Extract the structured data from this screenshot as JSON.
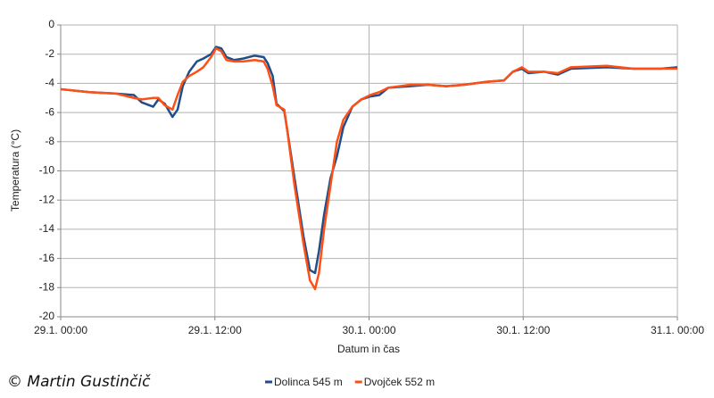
{
  "chart_data": {
    "type": "line",
    "x_label": "Datum in čas",
    "y_label": "Temperatura (°C)",
    "credit": "© Martin Gustinčič",
    "x": [
      0,
      2.2,
      4.3,
      5.7,
      6.3,
      7.2,
      7.6,
      8.1,
      8.7,
      9.1,
      9.5,
      10.0,
      10.6,
      11.1,
      11.7,
      12.1,
      12.5,
      12.9,
      13.5,
      14.2,
      15.1,
      15.8,
      16.1,
      16.5,
      16.8,
      17.4,
      17.6,
      18.2,
      18.9,
      19.4,
      19.8,
      20.1,
      20.5,
      21.0,
      21.5,
      22.0,
      22.7,
      23.4,
      24.1,
      24.8,
      25.5,
      27.2,
      28.6,
      30.0,
      31.4,
      33.1,
      34.5,
      35.2,
      35.9,
      36.4,
      37.6,
      38.7,
      39.7,
      42.5,
      44.6,
      46.7,
      48
    ],
    "series": [
      {
        "name": "Dolinca 545 m",
        "color": "#1f4e89",
        "values": [
          -4.4,
          -4.6,
          -4.7,
          -4.8,
          -5.3,
          -5.6,
          -5.1,
          -5.4,
          -6.3,
          -5.8,
          -4.2,
          -3.2,
          -2.5,
          -2.3,
          -2.0,
          -1.5,
          -1.6,
          -2.2,
          -2.4,
          -2.3,
          -2.1,
          -2.2,
          -2.6,
          -3.5,
          -5.4,
          -5.9,
          -7.0,
          -10.5,
          -14.5,
          -16.8,
          -17.0,
          -15.5,
          -13.0,
          -10.5,
          -9.0,
          -7.0,
          -5.6,
          -5.1,
          -4.9,
          -4.8,
          -4.3,
          -4.2,
          -4.1,
          -4.2,
          -4.1,
          -3.9,
          -3.8,
          -3.2,
          -3.0,
          -3.3,
          -3.2,
          -3.4,
          -3.0,
          -2.9,
          -3.0,
          -3.0,
          -2.9
        ]
      },
      {
        "name": "Dvojček 552 m",
        "color": "#ff4f14",
        "values": [
          -4.4,
          -4.6,
          -4.7,
          -5.0,
          -5.1,
          -5.0,
          -5.0,
          -5.5,
          -5.8,
          -4.8,
          -3.9,
          -3.5,
          -3.2,
          -2.9,
          -2.2,
          -1.6,
          -1.8,
          -2.4,
          -2.5,
          -2.5,
          -2.4,
          -2.5,
          -3.0,
          -4.2,
          -5.5,
          -5.8,
          -7.0,
          -11.0,
          -15.0,
          -17.5,
          -18.1,
          -17.0,
          -14.0,
          -11.0,
          -8.0,
          -6.5,
          -5.6,
          -5.1,
          -4.8,
          -4.6,
          -4.3,
          -4.1,
          -4.1,
          -4.2,
          -4.1,
          -3.9,
          -3.8,
          -3.2,
          -2.9,
          -3.2,
          -3.2,
          -3.3,
          -2.9,
          -2.8,
          -3.0,
          -3.0,
          -3.0
        ]
      }
    ],
    "xlim": [
      0,
      48
    ],
    "xticks": [
      {
        "value": 0,
        "label": "29.1. 00:00"
      },
      {
        "value": 12,
        "label": "29.1. 12:00"
      },
      {
        "value": 24,
        "label": "30.1. 00:00"
      },
      {
        "value": 36,
        "label": "30.1. 12:00"
      },
      {
        "value": 48,
        "label": "31.1. 00:00"
      }
    ],
    "ylim": [
      -20,
      0
    ],
    "yticks": [
      -20,
      -18,
      -16,
      -14,
      -12,
      -10,
      -8,
      -6,
      -4,
      -2,
      0
    ],
    "grid": true,
    "legend": "bottom"
  }
}
